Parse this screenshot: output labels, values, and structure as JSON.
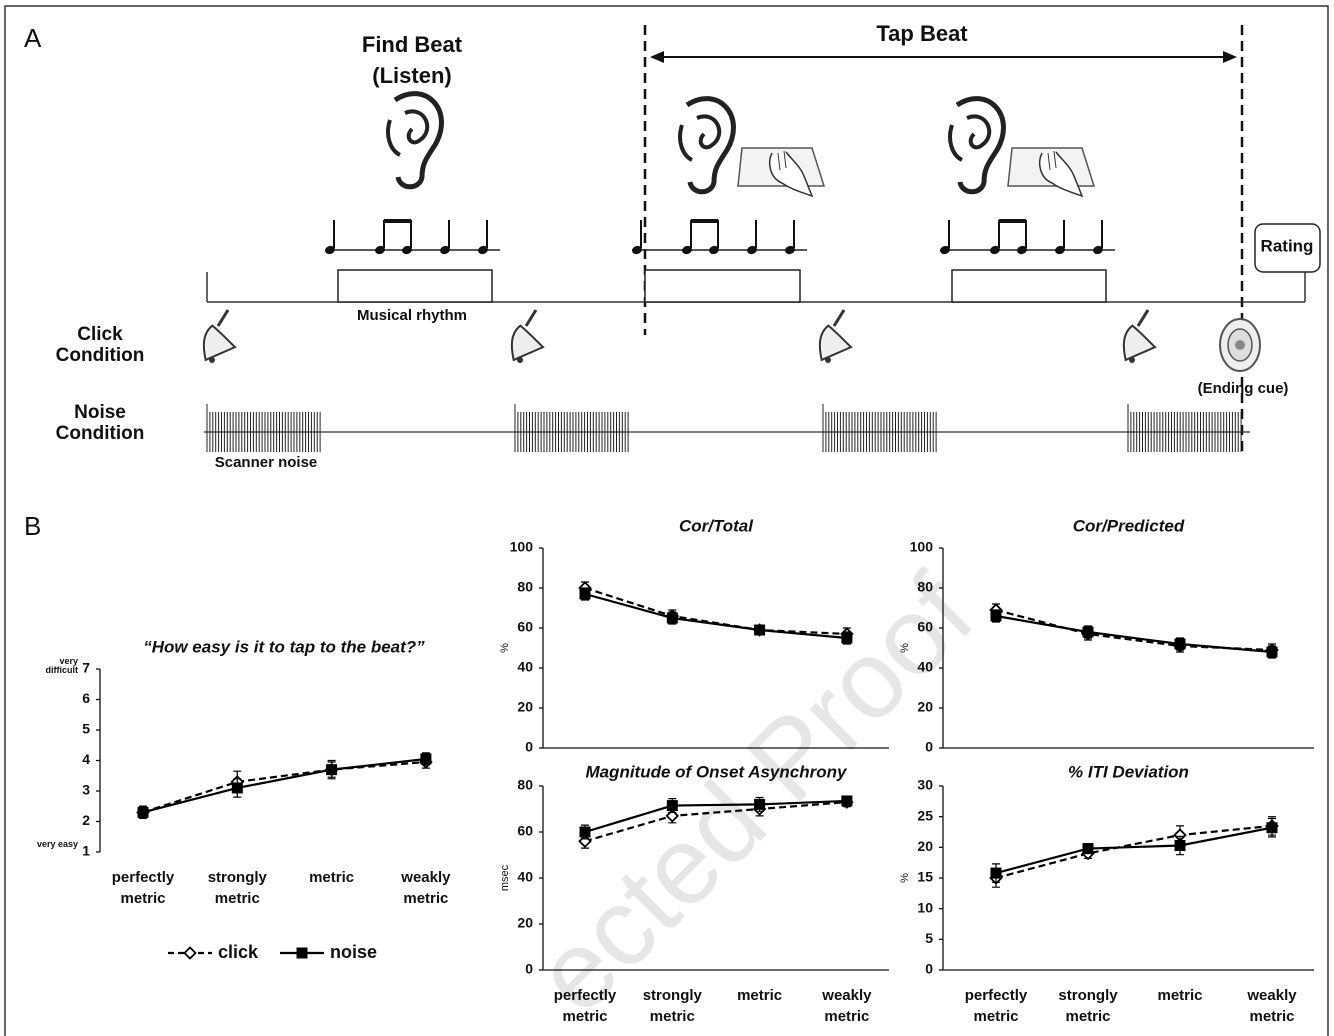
{
  "panel_a": {
    "label": "A",
    "find_beat": "Find Beat",
    "find_beat_sub": "(Listen)",
    "tap_beat": "Tap Beat",
    "rating": "Rating",
    "musical_rhythm": "Musical rhythm",
    "click_condition": [
      "Click",
      "Condition"
    ],
    "noise_condition": [
      "Noise",
      "Condition"
    ],
    "ending_cue": "(Ending cue)",
    "scanner_noise": "Scanner noise"
  },
  "panel_b": {
    "label": "B",
    "watermark": "ected Proof"
  },
  "chart_data": [
    {
      "type": "line",
      "title": "“How easy is it to tap to the beat?”",
      "categories": [
        "perfectly metric",
        "strongly metric",
        "metric",
        "weakly metric"
      ],
      "ylim": [
        1,
        7
      ],
      "yticks": [
        1,
        2,
        3,
        4,
        5,
        6,
        7
      ],
      "y_annotations": [
        {
          "value": 1,
          "label": "very easy"
        },
        {
          "value": 7,
          "label": "very difficult"
        }
      ],
      "x_axis_line": false,
      "legend": "bottom",
      "series": [
        {
          "name": "click",
          "color": "#000000",
          "dashed": true,
          "marker": "diamond-open",
          "values": [
            2.3,
            3.3,
            3.7,
            3.95
          ],
          "errors": [
            0.2,
            0.35,
            0.25,
            0.2
          ]
        },
        {
          "name": "noise",
          "color": "#000000",
          "dashed": false,
          "marker": "square",
          "values": [
            2.3,
            3.1,
            3.7,
            4.05
          ],
          "errors": [
            0.2,
            0.3,
            0.3,
            0.2
          ]
        }
      ]
    },
    {
      "type": "line",
      "title": "Cor/Total",
      "ylabel": "%",
      "categories": [
        null,
        null,
        null,
        null
      ],
      "ylim": [
        0,
        100
      ],
      "yticks": [
        0,
        20,
        40,
        60,
        80,
        100
      ],
      "x_axis_line": true,
      "series": [
        {
          "name": "click",
          "color": "#000000",
          "dashed": true,
          "marker": "diamond-open",
          "values": [
            80,
            66,
            59,
            57
          ],
          "errors": [
            3,
            3,
            2,
            3
          ]
        },
        {
          "name": "noise",
          "color": "#000000",
          "dashed": false,
          "marker": "square",
          "values": [
            77,
            65,
            59,
            55
          ],
          "errors": [
            3,
            3,
            2,
            3
          ]
        }
      ]
    },
    {
      "type": "line",
      "title": "Cor/Predicted",
      "ylabel": "%",
      "categories": [
        null,
        null,
        null,
        null
      ],
      "ylim": [
        0,
        100
      ],
      "yticks": [
        0,
        20,
        40,
        60,
        80,
        100
      ],
      "x_axis_line": true,
      "series": [
        {
          "name": "click",
          "color": "#000000",
          "dashed": true,
          "marker": "diamond-open",
          "values": [
            69,
            57,
            51,
            49
          ],
          "errors": [
            3,
            3,
            3,
            3
          ]
        },
        {
          "name": "noise",
          "color": "#000000",
          "dashed": false,
          "marker": "square",
          "values": [
            66,
            58,
            52,
            48
          ],
          "errors": [
            3,
            3,
            3,
            3
          ]
        }
      ]
    },
    {
      "type": "line",
      "title": "Magnitude of Onset Asynchrony",
      "ylabel": "msec",
      "categories": [
        "perfectly metric",
        "strongly metric",
        "metric",
        "weakly metric"
      ],
      "ylim": [
        0,
        80
      ],
      "yticks": [
        0,
        20,
        40,
        60,
        80
      ],
      "x_axis_line": true,
      "series": [
        {
          "name": "click",
          "color": "#000000",
          "dashed": true,
          "marker": "diamond-open",
          "values": [
            56,
            67,
            70,
            73
          ],
          "errors": [
            3,
            3,
            3,
            2
          ]
        },
        {
          "name": "noise",
          "color": "#000000",
          "dashed": false,
          "marker": "square",
          "values": [
            60,
            71.5,
            72,
            73.5
          ],
          "errors": [
            3,
            3,
            3,
            2
          ]
        }
      ]
    },
    {
      "type": "line",
      "title": "% ITI Deviation",
      "ylabel": "%",
      "categories": [
        "perfectly metric",
        "strongly metric",
        "metric",
        "weakly metric"
      ],
      "ylim": [
        0,
        30
      ],
      "yticks": [
        0,
        5,
        10,
        15,
        20,
        25,
        30
      ],
      "x_axis_line": true,
      "series": [
        {
          "name": "click",
          "color": "#000000",
          "dashed": true,
          "marker": "diamond-open",
          "values": [
            15,
            19,
            22,
            23.5
          ],
          "errors": [
            1.5,
            0.8,
            1.5,
            1.5
          ]
        },
        {
          "name": "noise",
          "color": "#000000",
          "dashed": false,
          "marker": "square",
          "values": [
            15.8,
            19.8,
            20.3,
            23.2
          ],
          "errors": [
            1.5,
            0.8,
            1.5,
            1.5
          ]
        }
      ]
    }
  ]
}
